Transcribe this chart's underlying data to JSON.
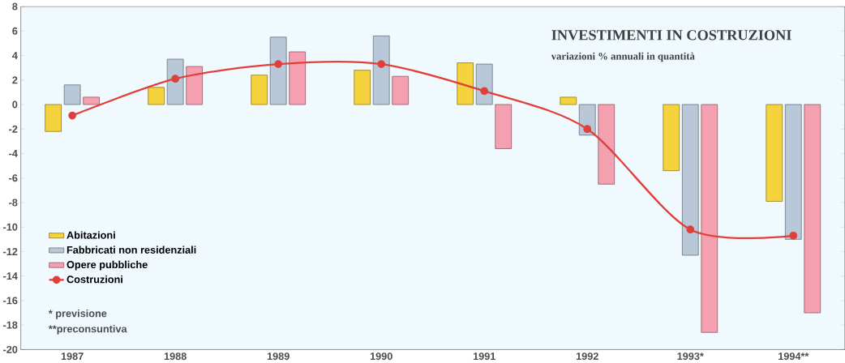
{
  "chart_data": {
    "type": "bar",
    "title": "INVESTIMENTI IN COSTRUZIONI",
    "subtitle": "variazioni % annuali in quantità",
    "categories": [
      "1987",
      "1988",
      "1989",
      "1990",
      "1991",
      "1992",
      "1993*",
      "1994**"
    ],
    "series": [
      {
        "name": "Abitazioni",
        "color": "#f5d33c",
        "values": [
          -2.2,
          1.4,
          2.4,
          2.8,
          3.4,
          0.6,
          -5.4,
          -7.9
        ]
      },
      {
        "name": "Fabbricati non residenziali",
        "color": "#b8c8d8",
        "values": [
          1.6,
          3.7,
          5.5,
          5.6,
          3.3,
          -2.5,
          -12.3,
          -11.0
        ]
      },
      {
        "name": "Opere pubbliche",
        "color": "#f4a0b0",
        "values": [
          0.6,
          3.1,
          4.3,
          2.3,
          -3.6,
          -6.5,
          -18.6,
          -17.0
        ]
      },
      {
        "name": "Costruzioni",
        "type": "line",
        "color": "#e0403a",
        "marker": "circle",
        "values": [
          -0.9,
          2.1,
          3.3,
          3.3,
          1.1,
          -2.0,
          -10.2,
          -10.7
        ]
      }
    ],
    "ylim": [
      -20,
      8
    ],
    "yticks": [
      -20,
      -18,
      -16,
      -14,
      -12,
      -10,
      -8,
      -6,
      -4,
      -2,
      0,
      2,
      4,
      6,
      8
    ],
    "grid": false,
    "legend": "bottom left",
    "annotations": [
      "* previsione",
      "**preconsuntiva"
    ]
  }
}
